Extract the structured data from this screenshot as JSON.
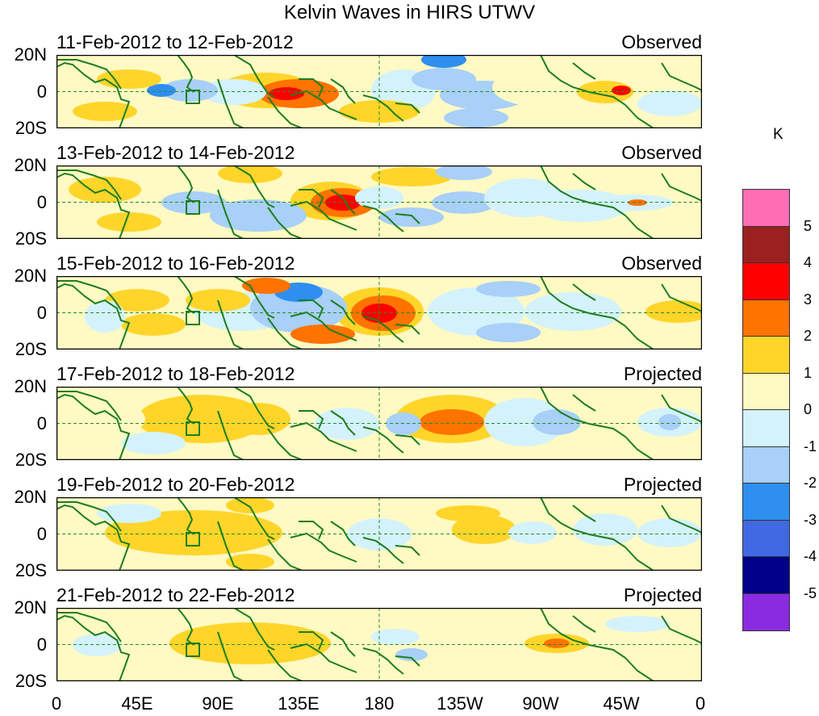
{
  "figure": {
    "title": "Kelvin Waves in HIRS UTWV"
  },
  "latitude_labels": [
    "20N",
    "0",
    "20S"
  ],
  "x_axis": {
    "ticks": [
      "0",
      "45E",
      "90E",
      "135E",
      "180",
      "135W",
      "90W",
      "45W",
      "0"
    ]
  },
  "panels": [
    {
      "date_range": "11-Feb-2012 to 12-Feb-2012",
      "status": "Observed"
    },
    {
      "date_range": "13-Feb-2012 to 14-Feb-2012",
      "status": "Observed"
    },
    {
      "date_range": "15-Feb-2012 to 16-Feb-2012",
      "status": "Observed"
    },
    {
      "date_range": "17-Feb-2012 to 18-Feb-2012",
      "status": "Projected"
    },
    {
      "date_range": "19-Feb-2012 to 20-Feb-2012",
      "status": "Projected"
    },
    {
      "date_range": "21-Feb-2012 to 22-Feb-2012",
      "status": "Projected"
    }
  ],
  "colorbar": {
    "unit": "K",
    "labels": [
      "5",
      "4",
      "3",
      "2",
      "1",
      "0",
      "-1",
      "-2",
      "-3",
      "-4",
      "-5"
    ],
    "colors": [
      "#ff6eb4",
      "#9b2020",
      "#ff0000",
      "#ff7300",
      "#ffd52a",
      "#fff9c4",
      "#d4f2fb",
      "#a8d0f8",
      "#2e8ff0",
      "#4169e1",
      "#00008b",
      "#8a2be2"
    ]
  },
  "map_colors": {
    "coast": "#1e7d1e",
    "grid": "#2a8a2a"
  }
}
